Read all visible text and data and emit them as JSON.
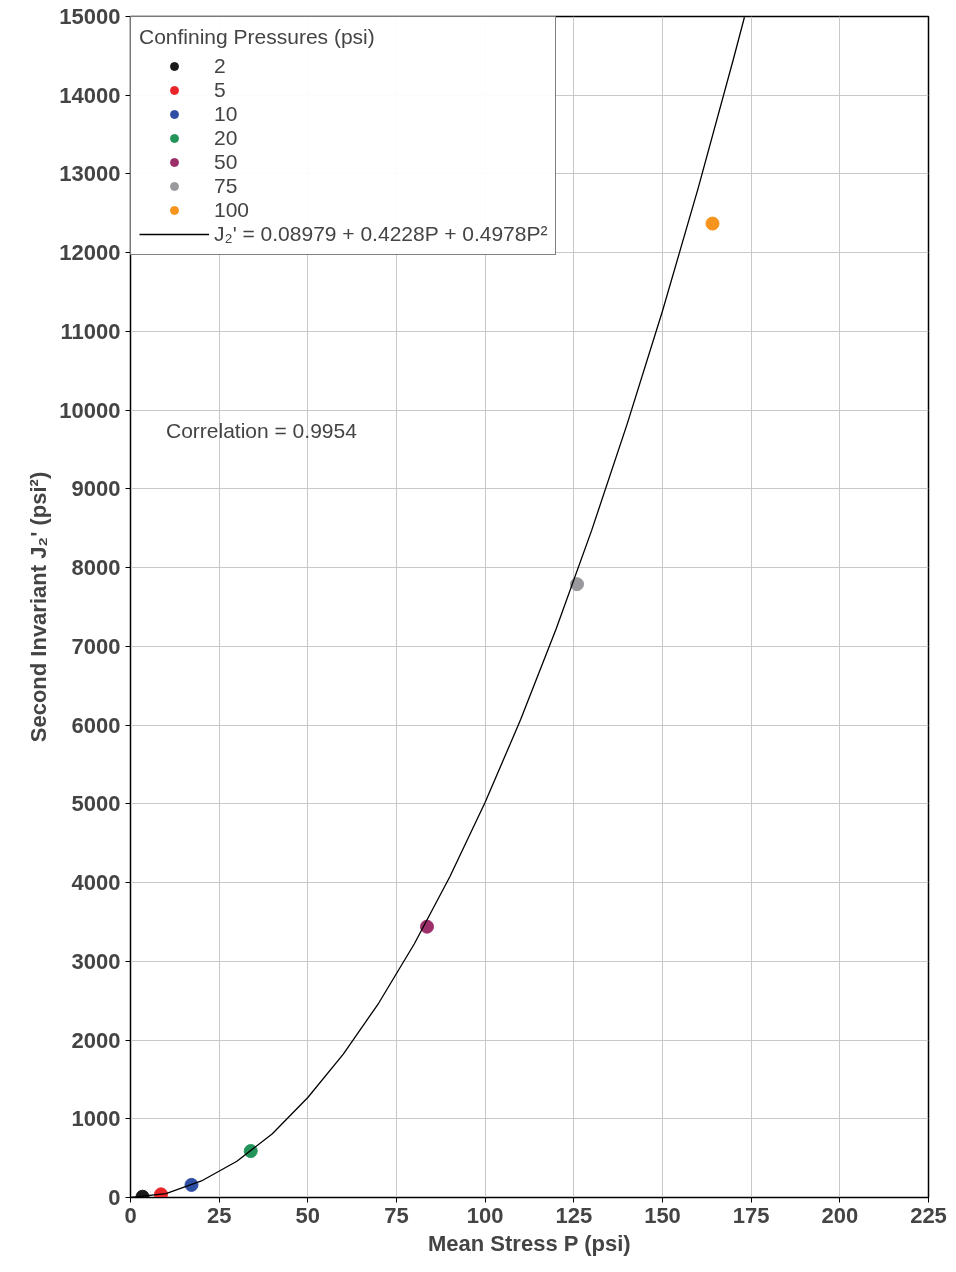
{
  "chart_data": {
    "type": "scatter",
    "xlabel": "Mean Stress P (psi)",
    "ylabel": "Second Invariant J₂' (psi²)",
    "legend_title": "Confining Pressures (psi)",
    "annotations": [
      "Correlation = 0.9954"
    ],
    "xlim": [
      0,
      225
    ],
    "xticks": [
      0,
      25,
      50,
      75,
      100,
      125,
      150,
      175,
      200,
      225
    ],
    "ylim": [
      0,
      15000
    ],
    "yticks": [
      0,
      1000,
      2000,
      3000,
      4000,
      5000,
      6000,
      7000,
      8000,
      9000,
      10000,
      11000,
      12000,
      13000,
      14000,
      15000
    ],
    "grid": true,
    "legend": "top left",
    "marker": "circle",
    "series": [
      {
        "name": "2",
        "color": "#1a1a1a",
        "x": [
          3.4
        ],
        "values": [
          10
        ]
      },
      {
        "name": "5",
        "color": "#e8262a",
        "x": [
          8.6
        ],
        "values": [
          40
        ]
      },
      {
        "name": "10",
        "color": "#2e4fa3",
        "x": [
          17.2
        ],
        "values": [
          160
        ]
      },
      {
        "name": "20",
        "color": "#23945a",
        "x": [
          33.9
        ],
        "values": [
          590
        ]
      },
      {
        "name": "50",
        "color": "#9c2f6a",
        "x": [
          83.6
        ],
        "values": [
          3440
        ]
      },
      {
        "name": "75",
        "color": "#9a9a9e",
        "x": [
          125.9
        ],
        "values": [
          7790
        ]
      },
      {
        "name": "100",
        "color": "#f7941d",
        "x": [
          164.1
        ],
        "values": [
          12370
        ]
      },
      {
        "name": "J₂' = 0.08979 + 0.4228P + 0.4978P²",
        "type": "line",
        "color": "#000000",
        "marker": "none",
        "line_style": "solid",
        "x": [
          0,
          10,
          20,
          30,
          40,
          50,
          60,
          70,
          80,
          90,
          100,
          110,
          120,
          130,
          140,
          150,
          160,
          170,
          173.1
        ],
        "values": [
          0,
          50,
          210,
          460,
          810,
          1270,
          1820,
          2470,
          3220,
          4070,
          5020,
          6070,
          7220,
          8470,
          9820,
          11260,
          12810,
          14460,
          14990
        ]
      }
    ]
  }
}
